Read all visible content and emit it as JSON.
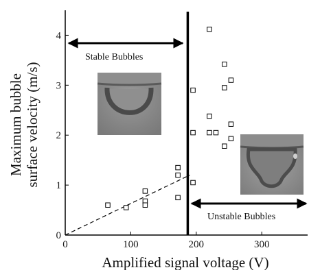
{
  "chart_data": {
    "type": "scatter",
    "xlabel": "Amplified signal voltage (V)",
    "ylabel_line1": "Maximum bubble",
    "ylabel_line2": "surface velocity (m/s)",
    "xlim": [
      0,
      370
    ],
    "ylim": [
      0,
      4.5
    ],
    "xticks": [
      0,
      100,
      200,
      300
    ],
    "yticks": [
      0,
      1,
      2,
      3,
      4
    ],
    "grid": false,
    "threshold_voltage": 187,
    "stable_label": "Stable Bubbles",
    "unstable_label": "Unstable Bubbles",
    "trend_line": {
      "style": "dashed",
      "from": [
        0,
        0
      ],
      "to": [
        190,
        1.2
      ]
    },
    "series": [
      {
        "marker": "open-square",
        "points": [
          [
            65,
            0.6
          ],
          [
            93,
            0.55
          ],
          [
            122,
            0.88
          ],
          [
            122,
            0.68
          ],
          [
            122,
            0.6
          ],
          [
            172,
            1.35
          ],
          [
            172,
            1.2
          ],
          [
            172,
            0.75
          ],
          [
            195,
            2.9
          ],
          [
            195,
            2.05
          ],
          [
            195,
            1.05
          ],
          [
            220,
            4.12
          ],
          [
            220,
            2.38
          ],
          [
            220,
            2.05
          ],
          [
            230,
            2.05
          ],
          [
            243,
            3.42
          ],
          [
            243,
            2.95
          ],
          [
            243,
            1.78
          ],
          [
            253,
            3.1
          ],
          [
            253,
            2.22
          ],
          [
            253,
            1.93
          ]
        ]
      }
    ],
    "inset_images": [
      "stable-bubble-photo",
      "unstable-bubble-photo"
    ]
  }
}
